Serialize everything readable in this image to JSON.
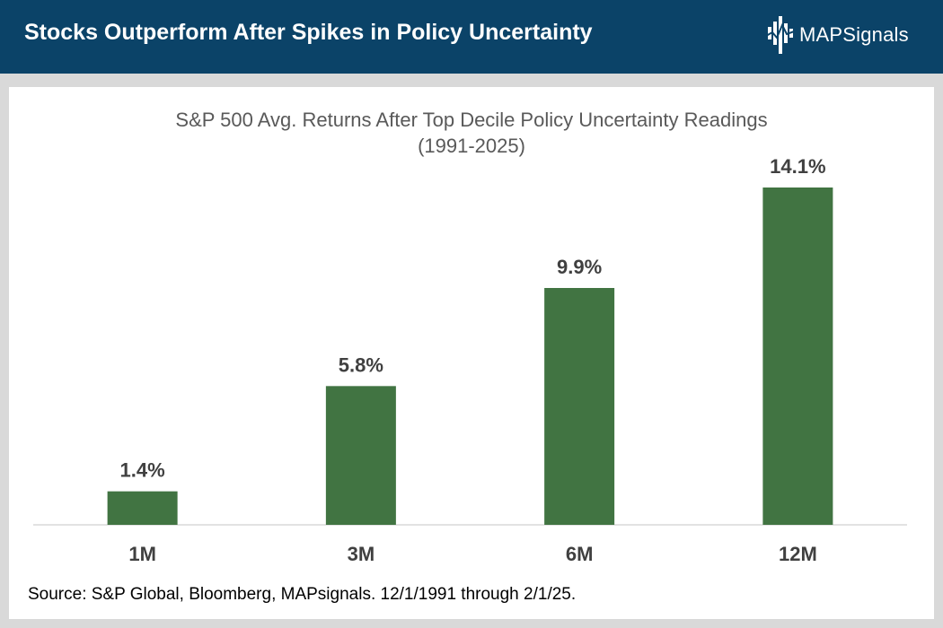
{
  "header": {
    "title": "Stocks Outperform After Spikes in Policy Uncertainty",
    "logo_icon": "mapsignals-logo-icon",
    "logo_text": "MAPSignals"
  },
  "colors": {
    "header_bg": "#0b4368",
    "bar": "#417442",
    "title_text": "#595959",
    "label_text": "#404040",
    "axis": "#d9d9d9"
  },
  "chart_data": {
    "type": "bar",
    "title_line1": "S&P 500 Avg. Returns After Top Decile Policy Uncertainty Readings",
    "title_line2": "(1991-2025)",
    "categories": [
      "1M",
      "3M",
      "6M",
      "12M"
    ],
    "values": [
      1.4,
      5.8,
      9.9,
      14.1
    ],
    "data_labels": [
      "1.4%",
      "5.8%",
      "9.9%",
      "14.1%"
    ],
    "xlabel": "",
    "ylabel": "",
    "ylim": [
      0,
      15
    ],
    "grid": false,
    "legend": "none"
  },
  "footer": {
    "source": "Source: S&P Global, Bloomberg, MAPsignals. 12/1/1991 through 2/1/25."
  }
}
